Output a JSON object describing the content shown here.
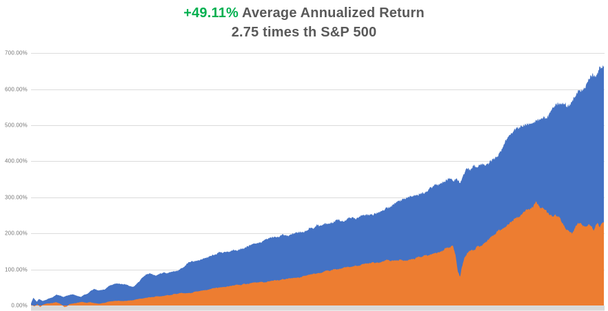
{
  "title": {
    "highlight": "+49.11%",
    "line1_rest": " Average Annualized Return",
    "line2": "2.75 times th S&P 500",
    "highlight_color": "#00B050",
    "text_color": "#595959"
  },
  "chart_data": {
    "type": "area",
    "title": "+49.11% Average Annualized Return",
    "subtitle": "2.75 times th S&P 500",
    "xlabel": "",
    "ylabel": "",
    "ylim": [
      0,
      700
    ],
    "grid": true,
    "legend": "none",
    "x_axis_labels_visible": false,
    "gridline_color": "#DBDBDB",
    "axis_strip_color": "#D9D9D9",
    "y_ticks": [
      {
        "value": 0,
        "label": "0.00%"
      },
      {
        "value": 100,
        "label": "100.00%"
      },
      {
        "value": 200,
        "label": "200.00%"
      },
      {
        "value": 300,
        "label": "300.00%"
      },
      {
        "value": 400,
        "label": "400.00%"
      },
      {
        "value": 500,
        "label": "500.00%"
      },
      {
        "value": 600,
        "label": "600.00%"
      },
      {
        "value": 700,
        "label": "700.00%"
      }
    ],
    "series": [
      {
        "name": "blue-area",
        "color": "#4472C4",
        "points": [
          [
            0.0,
            5
          ],
          [
            0.004,
            21
          ],
          [
            0.01,
            10
          ],
          [
            0.014,
            18
          ],
          [
            0.02,
            13
          ],
          [
            0.026,
            16
          ],
          [
            0.032,
            20
          ],
          [
            0.039,
            24
          ],
          [
            0.045,
            30
          ],
          [
            0.051,
            28
          ],
          [
            0.057,
            24
          ],
          [
            0.063,
            28
          ],
          [
            0.069,
            31
          ],
          [
            0.075,
            30
          ],
          [
            0.081,
            27
          ],
          [
            0.087,
            23
          ],
          [
            0.093,
            29
          ],
          [
            0.099,
            33
          ],
          [
            0.105,
            41
          ],
          [
            0.111,
            46
          ],
          [
            0.117,
            42
          ],
          [
            0.123,
            43
          ],
          [
            0.129,
            46
          ],
          [
            0.136,
            55
          ],
          [
            0.144,
            59
          ],
          [
            0.15,
            61
          ],
          [
            0.158,
            58
          ],
          [
            0.165,
            59
          ],
          [
            0.172,
            53
          ],
          [
            0.178,
            50
          ],
          [
            0.187,
            65
          ],
          [
            0.193,
            75
          ],
          [
            0.201,
            84
          ],
          [
            0.208,
            88
          ],
          [
            0.217,
            84
          ],
          [
            0.225,
            87
          ],
          [
            0.235,
            90
          ],
          [
            0.244,
            92
          ],
          [
            0.253,
            95
          ],
          [
            0.261,
            100
          ],
          [
            0.271,
            113
          ],
          [
            0.28,
            122
          ],
          [
            0.289,
            126
          ],
          [
            0.297,
            128
          ],
          [
            0.307,
            132
          ],
          [
            0.316,
            140
          ],
          [
            0.326,
            145
          ],
          [
            0.336,
            148
          ],
          [
            0.345,
            150
          ],
          [
            0.355,
            152
          ],
          [
            0.365,
            156
          ],
          [
            0.374,
            160
          ],
          [
            0.386,
            168
          ],
          [
            0.398,
            174
          ],
          [
            0.41,
            181
          ],
          [
            0.422,
            188
          ],
          [
            0.434,
            192
          ],
          [
            0.446,
            195
          ],
          [
            0.458,
            198
          ],
          [
            0.471,
            203
          ],
          [
            0.483,
            209
          ],
          [
            0.495,
            217
          ],
          [
            0.507,
            225
          ],
          [
            0.519,
            231
          ],
          [
            0.531,
            235
          ],
          [
            0.543,
            237
          ],
          [
            0.555,
            240
          ],
          [
            0.567,
            243
          ],
          [
            0.579,
            246
          ],
          [
            0.591,
            250
          ],
          [
            0.603,
            256
          ],
          [
            0.615,
            263
          ],
          [
            0.627,
            272
          ],
          [
            0.639,
            284
          ],
          [
            0.651,
            295
          ],
          [
            0.663,
            303
          ],
          [
            0.675,
            309
          ],
          [
            0.687,
            314
          ],
          [
            0.699,
            326
          ],
          [
            0.711,
            339
          ],
          [
            0.723,
            351
          ],
          [
            0.73,
            356
          ],
          [
            0.738,
            349
          ],
          [
            0.744,
            353
          ],
          [
            0.749,
            343
          ],
          [
            0.755,
            365
          ],
          [
            0.764,
            380
          ],
          [
            0.776,
            386
          ],
          [
            0.788,
            390
          ],
          [
            0.798,
            398
          ],
          [
            0.806,
            404
          ],
          [
            0.815,
            418
          ],
          [
            0.824,
            440
          ],
          [
            0.834,
            464
          ],
          [
            0.844,
            480
          ],
          [
            0.852,
            490
          ],
          [
            0.86,
            498
          ],
          [
            0.868,
            505
          ],
          [
            0.875,
            512
          ],
          [
            0.883,
            516
          ],
          [
            0.892,
            519
          ],
          [
            0.898,
            524
          ],
          [
            0.904,
            536
          ],
          [
            0.91,
            546
          ],
          [
            0.917,
            550
          ],
          [
            0.924,
            553
          ],
          [
            0.931,
            557
          ],
          [
            0.939,
            563
          ],
          [
            0.946,
            576
          ],
          [
            0.953,
            589
          ],
          [
            0.96,
            601
          ],
          [
            0.968,
            611
          ],
          [
            0.975,
            621
          ],
          [
            0.982,
            632
          ],
          [
            0.988,
            642
          ],
          [
            0.994,
            653
          ],
          [
            1.0,
            660
          ]
        ]
      },
      {
        "name": "orange-area",
        "color": "#ED7D31",
        "points": [
          [
            0.0,
            2
          ],
          [
            0.006,
            -3
          ],
          [
            0.011,
            4
          ],
          [
            0.016,
            -4
          ],
          [
            0.02,
            2
          ],
          [
            0.025,
            5
          ],
          [
            0.031,
            6
          ],
          [
            0.037,
            7
          ],
          [
            0.043,
            9
          ],
          [
            0.049,
            7
          ],
          [
            0.053,
            3
          ],
          [
            0.058,
            -4
          ],
          [
            0.063,
            -2
          ],
          [
            0.067,
            3
          ],
          [
            0.075,
            6
          ],
          [
            0.082,
            8
          ],
          [
            0.089,
            9
          ],
          [
            0.096,
            8
          ],
          [
            0.103,
            9
          ],
          [
            0.111,
            6
          ],
          [
            0.118,
            5
          ],
          [
            0.128,
            8
          ],
          [
            0.137,
            11
          ],
          [
            0.147,
            12
          ],
          [
            0.156,
            13
          ],
          [
            0.166,
            13
          ],
          [
            0.176,
            14
          ],
          [
            0.185,
            17
          ],
          [
            0.195,
            20
          ],
          [
            0.205,
            23
          ],
          [
            0.214,
            24
          ],
          [
            0.224,
            25
          ],
          [
            0.233,
            27
          ],
          [
            0.243,
            29
          ],
          [
            0.253,
            32
          ],
          [
            0.262,
            34
          ],
          [
            0.272,
            35
          ],
          [
            0.282,
            36
          ],
          [
            0.291,
            39
          ],
          [
            0.301,
            42
          ],
          [
            0.31,
            45
          ],
          [
            0.32,
            48
          ],
          [
            0.33,
            51
          ],
          [
            0.342,
            54
          ],
          [
            0.354,
            56
          ],
          [
            0.366,
            58
          ],
          [
            0.378,
            60
          ],
          [
            0.39,
            62
          ],
          [
            0.402,
            64
          ],
          [
            0.414,
            67
          ],
          [
            0.426,
            70
          ],
          [
            0.438,
            72
          ],
          [
            0.45,
            74
          ],
          [
            0.462,
            77
          ],
          [
            0.474,
            80
          ],
          [
            0.486,
            84
          ],
          [
            0.498,
            88
          ],
          [
            0.51,
            92
          ],
          [
            0.522,
            97
          ],
          [
            0.534,
            101
          ],
          [
            0.546,
            104
          ],
          [
            0.558,
            108
          ],
          [
            0.57,
            111
          ],
          [
            0.583,
            114
          ],
          [
            0.595,
            118
          ],
          [
            0.607,
            121
          ],
          [
            0.619,
            124
          ],
          [
            0.631,
            126
          ],
          [
            0.639,
            127
          ],
          [
            0.647,
            124
          ],
          [
            0.656,
            123
          ],
          [
            0.665,
            129
          ],
          [
            0.675,
            133
          ],
          [
            0.685,
            136
          ],
          [
            0.694,
            141
          ],
          [
            0.704,
            146
          ],
          [
            0.714,
            151
          ],
          [
            0.722,
            156
          ],
          [
            0.73,
            161
          ],
          [
            0.736,
            165
          ],
          [
            0.741,
            140
          ],
          [
            0.745,
            95
          ],
          [
            0.749,
            78
          ],
          [
            0.752,
            105
          ],
          [
            0.757,
            135
          ],
          [
            0.762,
            148
          ],
          [
            0.769,
            153
          ],
          [
            0.776,
            158
          ],
          [
            0.786,
            168
          ],
          [
            0.795,
            180
          ],
          [
            0.805,
            192
          ],
          [
            0.815,
            205
          ],
          [
            0.824,
            215
          ],
          [
            0.834,
            226
          ],
          [
            0.844,
            238
          ],
          [
            0.853,
            248
          ],
          [
            0.863,
            260
          ],
          [
            0.87,
            268
          ],
          [
            0.876,
            277
          ],
          [
            0.881,
            284
          ],
          [
            0.887,
            272
          ],
          [
            0.893,
            266
          ],
          [
            0.899,
            262
          ],
          [
            0.905,
            250
          ],
          [
            0.91,
            244
          ],
          [
            0.916,
            252
          ],
          [
            0.921,
            250
          ],
          [
            0.925,
            240
          ],
          [
            0.93,
            225
          ],
          [
            0.935,
            212
          ],
          [
            0.94,
            205
          ],
          [
            0.945,
            200
          ],
          [
            0.95,
            215
          ],
          [
            0.954,
            227
          ],
          [
            0.959,
            231
          ],
          [
            0.964,
            222
          ],
          [
            0.969,
            219
          ],
          [
            0.974,
            226
          ],
          [
            0.978,
            218
          ],
          [
            0.982,
            205
          ],
          [
            0.986,
            225
          ],
          [
            0.989,
            230
          ],
          [
            0.993,
            222
          ],
          [
            0.996,
            228
          ],
          [
            1.0,
            230
          ]
        ]
      }
    ]
  }
}
